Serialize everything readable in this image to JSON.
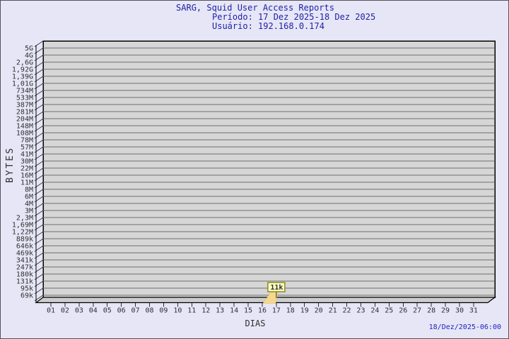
{
  "page": {
    "background_color": "#e6e6f7",
    "border_color": "#53535b"
  },
  "header": {
    "title": "SARG, Squid User Access Reports",
    "period_line": "Período: 17 Dez 2025-18 Dez 2025",
    "user_line": "Usuário: 192.168.0.174",
    "text_color": "#2121a4"
  },
  "footer": {
    "timestamp": "18/Dez/2025-06:00",
    "color": "#2222bd"
  },
  "chart_data": {
    "type": "line",
    "title": "SARG, Squid User Access Reports",
    "subtitle": "Período: 17 Dez 2025-18 Dez 2025",
    "user": "192.168.0.174",
    "xlabel": "DIAS",
    "ylabel": "BYTES",
    "grid": true,
    "style": "gdchart-3d",
    "plot_bg": "#d6d6d6",
    "grid_color": "#6e6e6e",
    "y_tick_labels": [
      "5G",
      "4G",
      "2,6G",
      "1,92G",
      "1,39G",
      "1,01G",
      "734M",
      "533M",
      "387M",
      "281M",
      "204M",
      "148M",
      "108M",
      "78M",
      "57M",
      "41M",
      "30M",
      "22M",
      "16M",
      "11M",
      "8M",
      "6M",
      "4M",
      "3M",
      "2,3M",
      "1,69M",
      "1,22M",
      "889k",
      "646k",
      "469k",
      "341k",
      "247k",
      "180k",
      "131k",
      "95k",
      "69k"
    ],
    "x_tick_labels": [
      "01",
      "02",
      "03",
      "04",
      "05",
      "06",
      "07",
      "08",
      "09",
      "10",
      "11",
      "12",
      "13",
      "14",
      "15",
      "16",
      "17",
      "18",
      "19",
      "20",
      "21",
      "22",
      "23",
      "24",
      "25",
      "26",
      "27",
      "28",
      "29",
      "30",
      "31"
    ],
    "data_points": [
      {
        "day": "17",
        "label": "11k",
        "bytes": 11000
      }
    ],
    "annotation_flag": {
      "label": "11k",
      "fill": "#ffffc6",
      "border": "#8c8c1a",
      "tail": "#f5d88e"
    }
  }
}
